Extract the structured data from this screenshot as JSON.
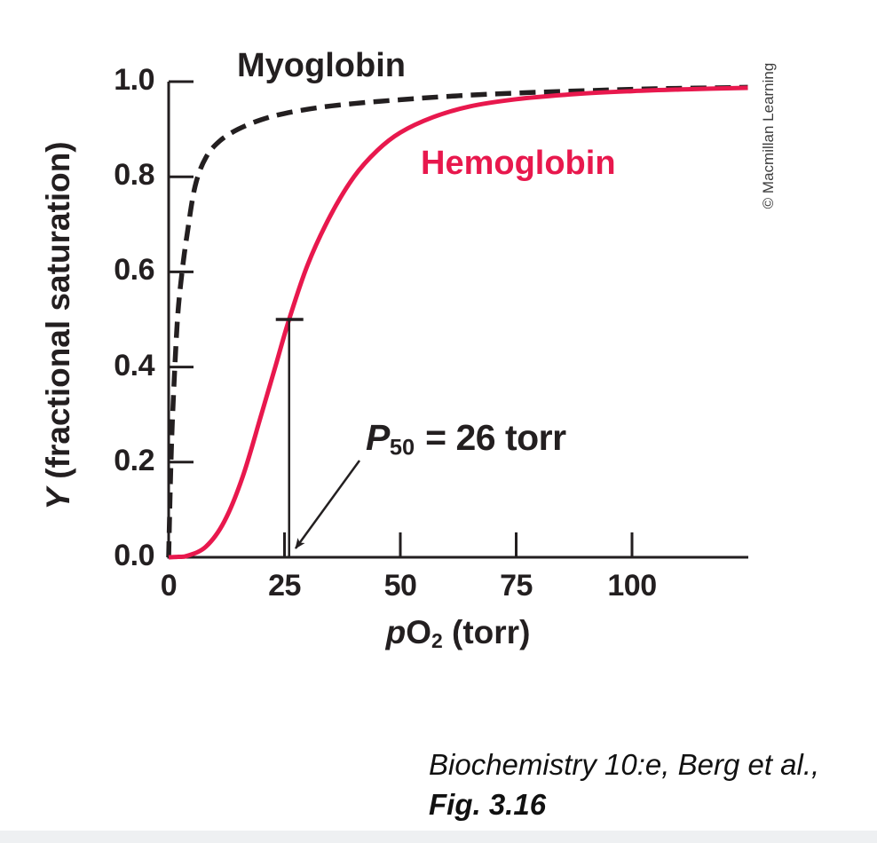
{
  "figure": {
    "series_labels": {
      "myoglobin": "Myoglobin",
      "hemoglobin": "Hemoglobin"
    },
    "annotation": {
      "p_symbol": "P",
      "p_subscript": "50",
      "value_text": "= 26 torr"
    },
    "copyright": "© Macmillan Learning",
    "caption": {
      "line1": "Biochemistry 10:e, Berg et al.,",
      "line2": "Fig. 3.16"
    },
    "colors": {
      "hemoglobin": "#e8184d",
      "myoglobin": "#231f20",
      "axis": "#231f20",
      "footer_strip": "#eef0f2"
    }
  },
  "chart_data": {
    "type": "line",
    "title": "",
    "xlabel": "pO2 (torr)",
    "xlabel_parts": {
      "italic": "p",
      "main": "O",
      "subscript": "2",
      "suffix": " (torr)"
    },
    "ylabel": "Y (fractional saturation)",
    "ylabel_parts": {
      "italic": "Y",
      "suffix": " (fractional saturation)"
    },
    "xlim": [
      0,
      125
    ],
    "ylim": [
      0,
      1.0
    ],
    "x_ticks": [
      0,
      25,
      50,
      75,
      100
    ],
    "y_ticks": [
      0.0,
      0.2,
      0.4,
      0.6,
      0.8,
      1.0
    ],
    "grid": false,
    "legend": "inline-labels",
    "p50_marker": {
      "x_torr": 26,
      "y_saturation": 0.5
    },
    "series": [
      {
        "name": "Myoglobin",
        "style": "dashed",
        "color": "#231f20",
        "points": [
          [
            0,
            0
          ],
          [
            0.5,
            0.2
          ],
          [
            1,
            0.33
          ],
          [
            1.9,
            0.5
          ],
          [
            2.9,
            0.6
          ],
          [
            4,
            0.68
          ],
          [
            5.7,
            0.78
          ],
          [
            8,
            0.84
          ],
          [
            11,
            0.875
          ],
          [
            15,
            0.9
          ],
          [
            20,
            0.92
          ],
          [
            25,
            0.933
          ],
          [
            32,
            0.945
          ],
          [
            40,
            0.954
          ],
          [
            50,
            0.962
          ],
          [
            62,
            0.97
          ],
          [
            75,
            0.976
          ],
          [
            90,
            0.981
          ],
          [
            105,
            0.985
          ],
          [
            125,
            0.988
          ]
        ]
      },
      {
        "name": "Hemoglobin",
        "style": "solid",
        "color": "#e8184d",
        "points": [
          [
            0,
            0
          ],
          [
            2,
            0.001
          ],
          [
            4,
            0.003
          ],
          [
            8,
            0.022
          ],
          [
            12,
            0.075
          ],
          [
            16,
            0.17
          ],
          [
            20,
            0.3
          ],
          [
            23,
            0.4
          ],
          [
            26,
            0.5
          ],
          [
            30,
            0.615
          ],
          [
            35,
            0.72
          ],
          [
            40,
            0.8
          ],
          [
            45,
            0.855
          ],
          [
            50,
            0.893
          ],
          [
            57,
            0.925
          ],
          [
            65,
            0.948
          ],
          [
            75,
            0.963
          ],
          [
            88,
            0.974
          ],
          [
            100,
            0.98
          ],
          [
            112,
            0.984
          ],
          [
            125,
            0.987
          ]
        ]
      }
    ]
  }
}
